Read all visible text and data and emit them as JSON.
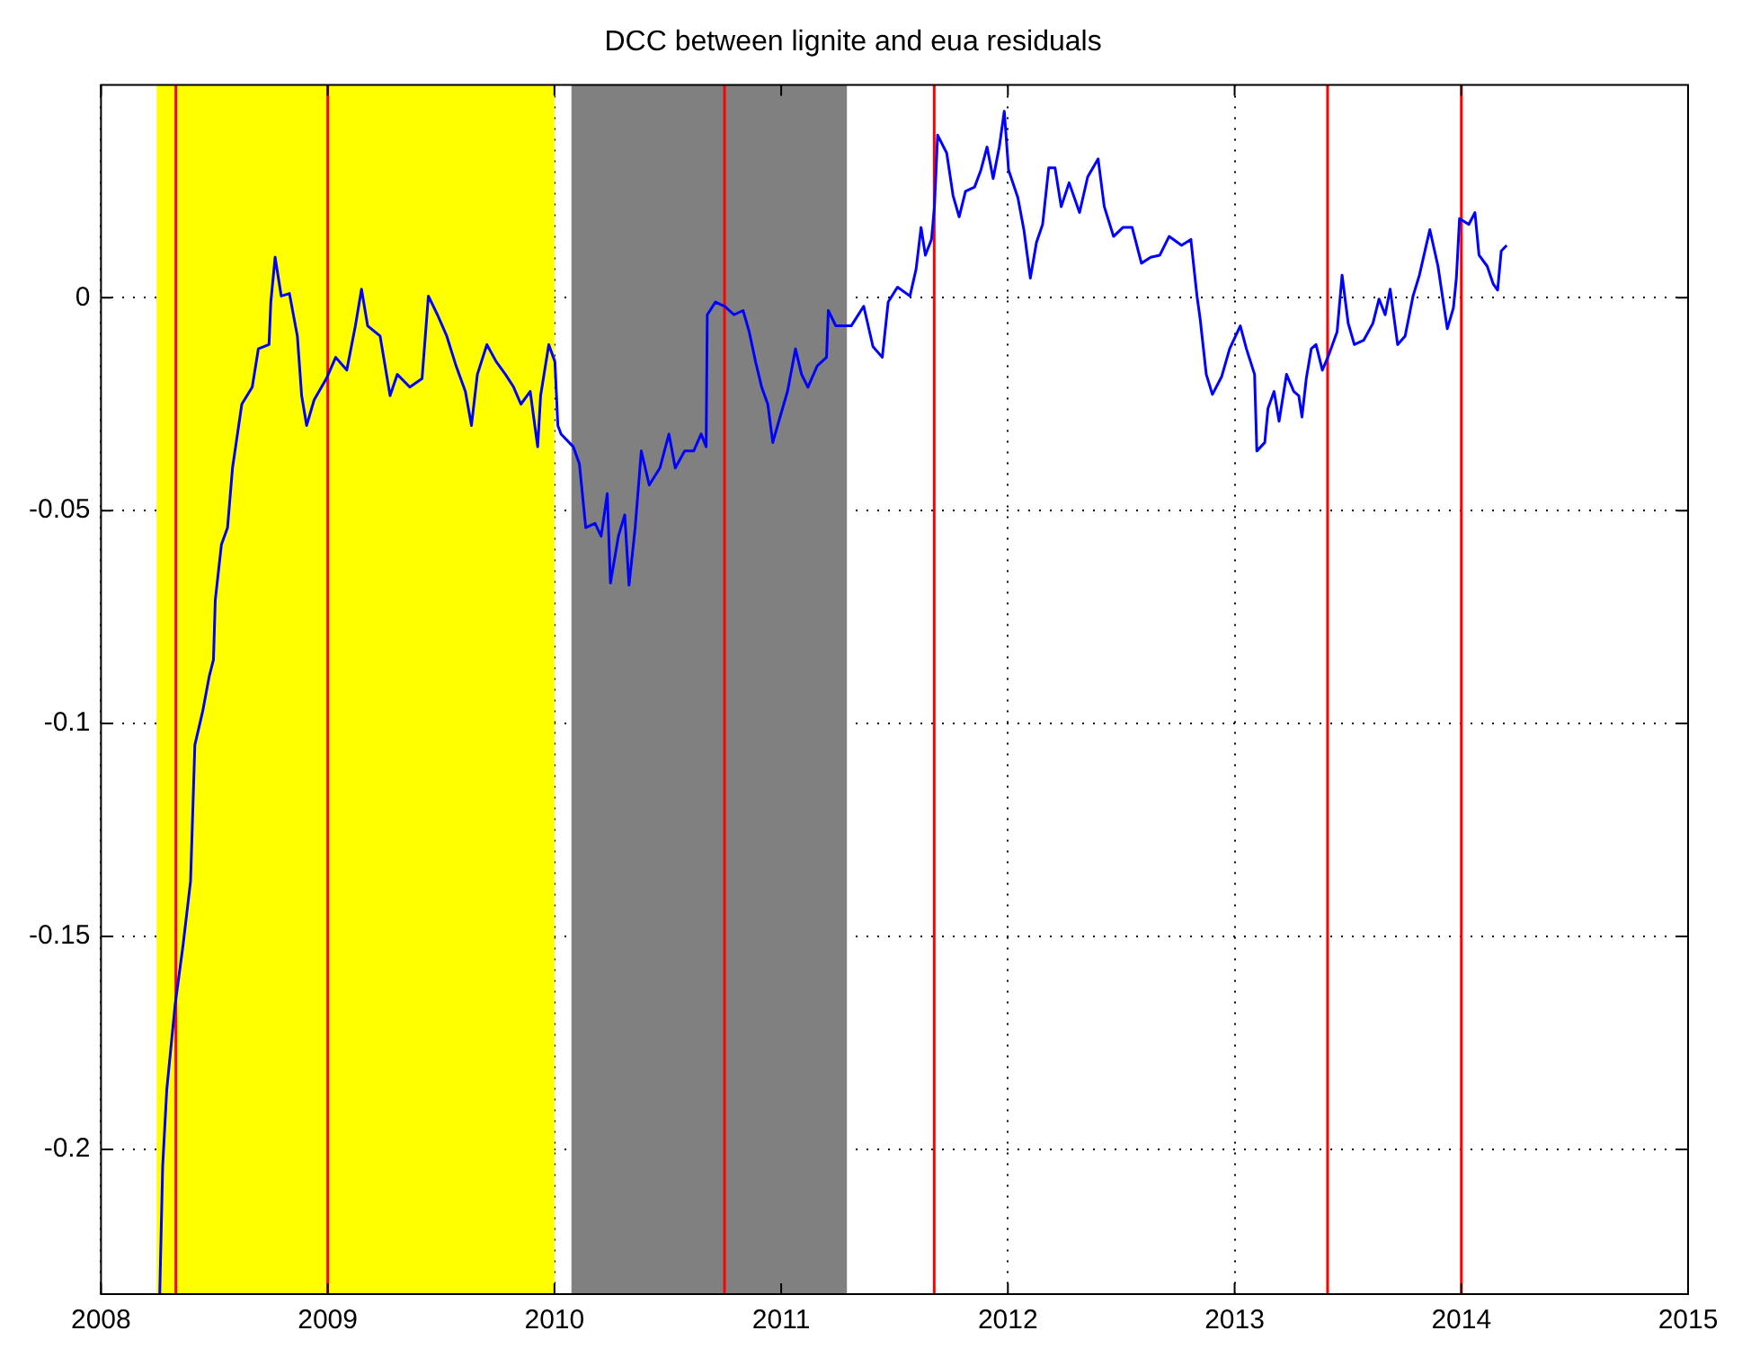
{
  "chart_data": {
    "type": "line",
    "title": "DCC between lignite and eua residuals",
    "xlim": [
      2008,
      2015
    ],
    "xticks": [
      2008,
      2009,
      2010,
      2011,
      2012,
      2013,
      2014,
      2015
    ],
    "ylim": [
      -0.234,
      0.05
    ],
    "yticks": [
      -0.2,
      -0.15,
      -0.1,
      -0.05,
      0
    ],
    "grid": true,
    "legend": false,
    "marker": "none",
    "line_style": "solid",
    "bands": [
      {
        "axis": "x",
        "from": 2008.245,
        "to": 2010.0,
        "color": "#ffff00"
      },
      {
        "axis": "x",
        "from": 2010.075,
        "to": 2011.29,
        "color": "#808080"
      }
    ],
    "ref_lines": [
      {
        "axis": "x",
        "value": 2008.33,
        "color": "#ff0000"
      },
      {
        "axis": "x",
        "value": 2009.0,
        "color": "#ff0000"
      },
      {
        "axis": "x",
        "value": 2010.75,
        "color": "#ff0000"
      },
      {
        "axis": "x",
        "value": 2011.675,
        "color": "#ff0000"
      },
      {
        "axis": "x",
        "value": 2013.41,
        "color": "#ff0000"
      },
      {
        "axis": "x",
        "value": 2014.0,
        "color": "#ff0000"
      }
    ],
    "series": [
      {
        "color": "#0000ff",
        "x": [
          2008.259,
          2008.272,
          2008.29,
          2008.327,
          2008.362,
          2008.395,
          2008.414,
          2008.449,
          2008.477,
          2008.496,
          2008.504,
          2008.531,
          2008.558,
          2008.58,
          2008.621,
          2008.667,
          2008.694,
          2008.741,
          2008.749,
          2008.768,
          2008.795,
          2008.831,
          2008.866,
          2008.885,
          2008.907,
          2008.94,
          2008.994,
          2009.035,
          2009.084,
          2009.122,
          2009.149,
          2009.176,
          2009.231,
          2009.275,
          2009.307,
          2009.362,
          2009.416,
          2009.444,
          2009.484,
          2009.525,
          2009.566,
          2009.607,
          2009.634,
          2009.66,
          2009.702,
          2009.743,
          2009.784,
          2009.82,
          2009.852,
          2009.893,
          2009.926,
          2009.939,
          2009.975,
          2010.002,
          2010.015,
          2010.029,
          2010.083,
          2010.11,
          2010.138,
          2010.179,
          2010.206,
          2010.233,
          2010.247,
          2010.282,
          2010.31,
          2010.329,
          2010.356,
          2010.383,
          2010.418,
          2010.465,
          2010.505,
          2010.533,
          2010.574,
          2010.614,
          2010.647,
          2010.669,
          2010.674,
          2010.71,
          2010.751,
          2010.792,
          2010.832,
          2010.859,
          2010.887,
          2010.914,
          2010.941,
          2010.963,
          2010.995,
          2011.028,
          2011.063,
          2011.09,
          2011.118,
          2011.159,
          2011.2,
          2011.208,
          2011.241,
          2011.309,
          2011.364,
          2011.405,
          2011.446,
          2011.472,
          2011.513,
          2011.568,
          2011.595,
          2011.617,
          2011.636,
          2011.663,
          2011.676,
          2011.69,
          2011.73,
          2011.758,
          2011.785,
          2011.813,
          2011.853,
          2011.881,
          2011.908,
          2011.935,
          2011.962,
          2011.984,
          2012.003,
          2012.044,
          2012.071,
          2012.099,
          2012.126,
          2012.153,
          2012.18,
          2012.208,
          2012.235,
          2012.27,
          2012.316,
          2012.352,
          2012.398,
          2012.425,
          2012.466,
          2012.507,
          2012.548,
          2012.589,
          2012.63,
          2012.67,
          2012.711,
          2012.766,
          2012.807,
          2012.834,
          2012.848,
          2012.875,
          2012.902,
          2012.943,
          2012.978,
          2013.025,
          2013.052,
          2013.088,
          2013.098,
          2013.133,
          2013.147,
          2013.174,
          2013.196,
          2013.229,
          2013.261,
          2013.283,
          2013.297,
          2013.316,
          2013.338,
          2013.359,
          2013.387,
          2013.414,
          2013.452,
          2013.474,
          2013.501,
          2013.528,
          2013.569,
          2013.61,
          2013.637,
          2013.664,
          2013.686,
          2013.719,
          2013.752,
          2013.787,
          2013.815,
          2013.842,
          2013.861,
          2013.897,
          2013.938,
          2013.965,
          2013.978,
          2013.992,
          2014.033,
          2014.06,
          2014.078,
          2014.114,
          2014.141,
          2014.16,
          2014.176,
          2014.2
        ],
        "values": [
          -0.234,
          -0.204,
          -0.186,
          -0.166,
          -0.152,
          -0.137,
          -0.105,
          -0.097,
          -0.089,
          -0.085,
          -0.071,
          -0.058,
          -0.054,
          -0.04,
          -0.025,
          -0.021,
          -0.012,
          -0.011,
          -0.001,
          0.0095,
          0.0004,
          0.001,
          -0.009,
          -0.023,
          -0.03,
          -0.024,
          -0.019,
          -0.014,
          -0.017,
          -0.0066,
          0.002,
          -0.0066,
          -0.009,
          -0.023,
          -0.018,
          -0.021,
          -0.019,
          0.0004,
          -0.004,
          -0.009,
          -0.016,
          -0.022,
          -0.03,
          -0.018,
          -0.011,
          -0.015,
          -0.018,
          -0.021,
          -0.025,
          -0.022,
          -0.035,
          -0.023,
          -0.011,
          -0.015,
          -0.03,
          -0.032,
          -0.035,
          -0.039,
          -0.054,
          -0.053,
          -0.056,
          -0.046,
          -0.067,
          -0.056,
          -0.051,
          -0.0675,
          -0.054,
          -0.036,
          -0.044,
          -0.04,
          -0.032,
          -0.04,
          -0.036,
          -0.036,
          -0.032,
          -0.035,
          -0.004,
          -0.001,
          -0.002,
          -0.004,
          -0.003,
          -0.008,
          -0.015,
          -0.021,
          -0.025,
          -0.034,
          -0.028,
          -0.022,
          -0.012,
          -0.018,
          -0.021,
          -0.016,
          -0.014,
          -0.003,
          -0.0066,
          -0.0066,
          -0.002,
          -0.0115,
          -0.014,
          -0.001,
          0.0025,
          0.0004,
          0.0067,
          0.0165,
          0.01,
          0.0137,
          0.0214,
          0.0382,
          0.034,
          0.024,
          0.019,
          0.025,
          0.026,
          0.03,
          0.0354,
          0.028,
          0.0354,
          0.0438,
          0.03,
          0.0235,
          0.0158,
          0.0046,
          0.013,
          0.0172,
          0.0305,
          0.0305,
          0.0214,
          0.027,
          0.02,
          0.0284,
          0.0326,
          0.0214,
          0.0144,
          0.0165,
          0.0165,
          0.0081,
          0.0095,
          0.01,
          0.0144,
          0.0123,
          0.0137,
          0.0004,
          -0.005,
          -0.018,
          -0.0227,
          -0.0185,
          -0.012,
          -0.0066,
          -0.012,
          -0.018,
          -0.036,
          -0.034,
          -0.026,
          -0.022,
          -0.029,
          -0.018,
          -0.022,
          -0.023,
          -0.028,
          -0.019,
          -0.012,
          -0.011,
          -0.017,
          -0.0136,
          -0.008,
          0.0053,
          -0.006,
          -0.011,
          -0.01,
          -0.006,
          -0.0003,
          -0.004,
          0.002,
          -0.011,
          -0.009,
          0.0004,
          0.0053,
          0.0116,
          0.016,
          0.0074,
          -0.0073,
          -0.0024,
          0.0046,
          0.0186,
          0.0172,
          0.02,
          0.01,
          0.0074,
          0.0032,
          0.0018,
          0.011,
          0.0123
        ]
      }
    ]
  }
}
